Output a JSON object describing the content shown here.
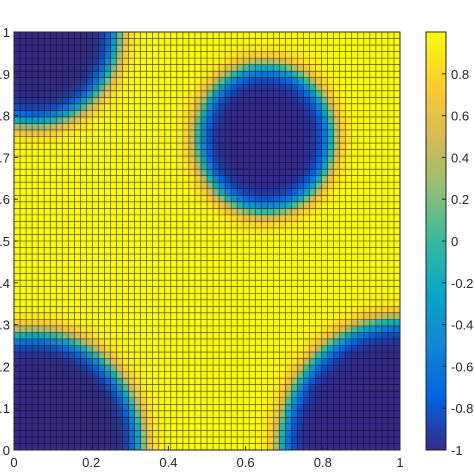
{
  "chart_data": {
    "type": "heatmap",
    "title": "",
    "xlabel": "",
    "ylabel": "",
    "xlim": [
      0,
      1
    ],
    "ylim": [
      0,
      1
    ],
    "clim": [
      -1,
      1
    ],
    "grid": "mesh",
    "grid_cells": 64,
    "x_ticks": [
      "0",
      "0.2",
      "0.4",
      "0.6",
      "0.8",
      "1"
    ],
    "x_tick_values": [
      0,
      0.2,
      0.4,
      0.6,
      0.8,
      1
    ],
    "y_ticks": [
      "0",
      "0.1",
      "0.2",
      "0.3",
      "0.4",
      "0.5",
      "0.6",
      "0.7",
      "0.8",
      "0.9",
      "1"
    ],
    "y_tick_values": [
      0,
      0.1,
      0.2,
      0.3,
      0.4,
      0.5,
      0.6,
      0.7,
      0.8,
      0.9,
      1
    ],
    "colorbar_ticks": [
      "-1",
      "-0.8",
      "-0.6",
      "-0.4",
      "-0.2",
      "0",
      "0.2",
      "0.4",
      "0.6",
      "0.8"
    ],
    "colorbar_tick_values": [
      -1,
      -0.8,
      -0.6,
      -0.4,
      -0.2,
      0,
      0.2,
      0.4,
      0.6,
      0.8
    ],
    "colormap": "parula",
    "background_value": 1,
    "interface_width": 0.02,
    "circles": [
      {
        "cx": 0.05,
        "cy": 1.0,
        "r": 0.22,
        "value": -1
      },
      {
        "cx": 0.65,
        "cy": 0.745,
        "r": 0.175,
        "value": -1
      },
      {
        "cx": 0.05,
        "cy": 0.0,
        "r": 0.28,
        "value": -1
      },
      {
        "cx": 1.0,
        "cy": 0.0,
        "r": 0.31,
        "value": -1
      }
    ]
  },
  "colors": {
    "parula": [
      "#352a87",
      "#0363e1",
      "#1485d4",
      "#06a7c6",
      "#38b99e",
      "#92bf73",
      "#d9ba56",
      "#fcce2e",
      "#f9fb0e"
    ],
    "grid_line": "#000000",
    "axis": "#262626"
  }
}
